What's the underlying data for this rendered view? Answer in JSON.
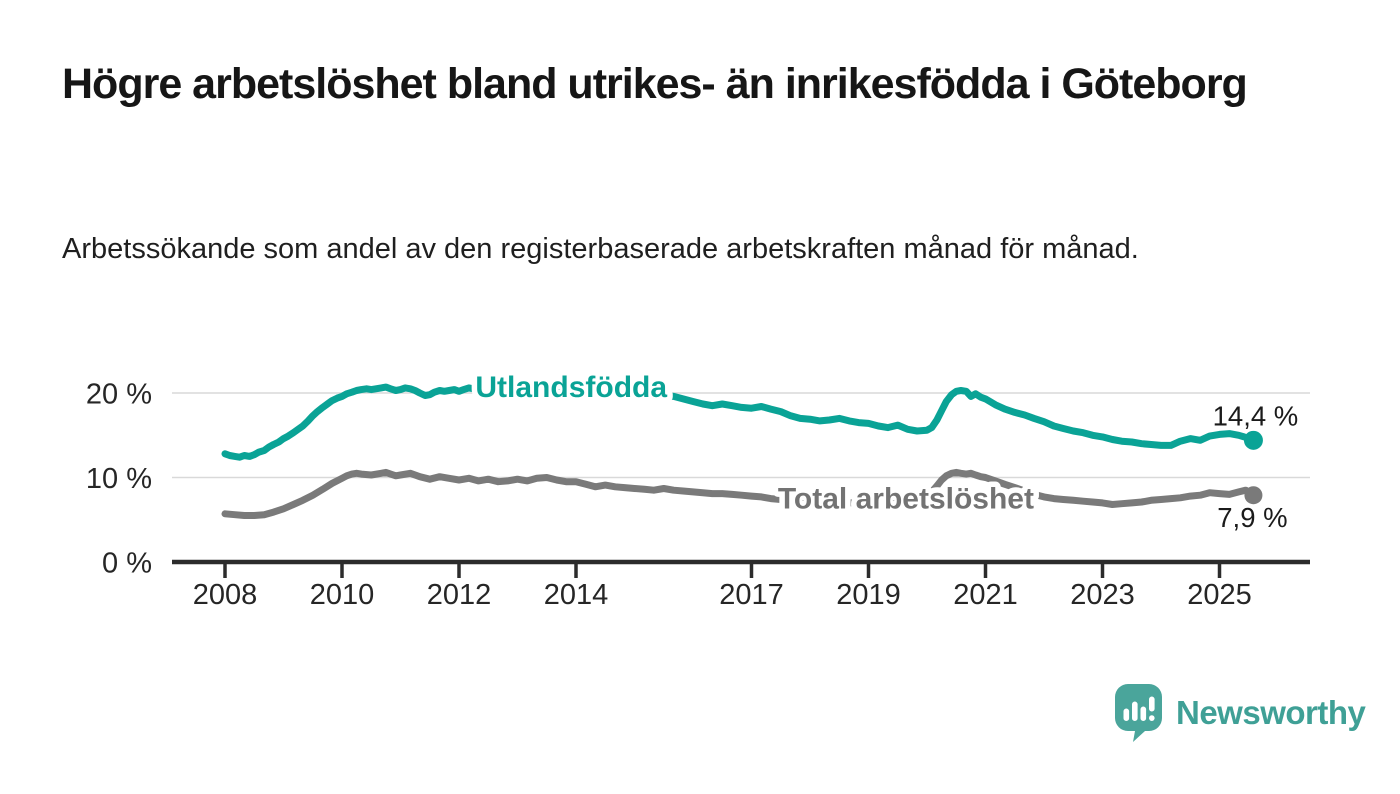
{
  "header": {
    "title": "Högre arbetslöshet bland utrikes- än inrikesfödda i Göteborg",
    "subtitle": "Arbetssökande som andel av den registerbaserade arbetskraften månad för månad."
  },
  "footer": {
    "brand": "Newsworthy",
    "logo_icon": "speech-bubble-bar-chart-icon"
  },
  "colors": {
    "utlandsfodda": "#0AA396",
    "total": "#7A7A7A",
    "total_label": "#737373",
    "grid": "#D9D9D9",
    "axis": "#2C2C2C",
    "axis_text": "#262626",
    "annotation_text": "#1B1B1B",
    "background": "#FFFFFF",
    "logo_bubble": "#4AA59B",
    "logo_text": "#3FA096"
  },
  "chart_data": {
    "type": "line",
    "title": "Högre arbetslöshet bland utrikes- än inrikesfödda i Göteborg",
    "xlabel": "",
    "ylabel": "%",
    "grid": "horizontal-gridlines",
    "legend_position": "inline-series-labels",
    "x_axis": {
      "tick_years": [
        2008,
        2010,
        2012,
        2014,
        2017,
        2019,
        2021,
        2023,
        2025
      ],
      "range": [
        2007.1,
        2026.5
      ]
    },
    "y_axis": {
      "ticks": [
        0,
        10,
        20
      ],
      "tick_suffix": " %",
      "ylim": [
        0,
        23.5
      ]
    },
    "series": [
      {
        "name": "Utlandsfödda",
        "color": "#0AA396",
        "end_label": "14,4 %",
        "end_value": 14.4,
        "label_anchor": [
          2012.28,
          19.55
        ],
        "points": [
          [
            2008.0,
            12.8
          ],
          [
            2008.08,
            12.6
          ],
          [
            2008.17,
            12.5
          ],
          [
            2008.25,
            12.4
          ],
          [
            2008.33,
            12.6
          ],
          [
            2008.42,
            12.5
          ],
          [
            2008.5,
            12.7
          ],
          [
            2008.58,
            13.0
          ],
          [
            2008.67,
            13.2
          ],
          [
            2008.75,
            13.6
          ],
          [
            2008.83,
            13.9
          ],
          [
            2008.92,
            14.2
          ],
          [
            2009.0,
            14.6
          ],
          [
            2009.08,
            14.9
          ],
          [
            2009.17,
            15.3
          ],
          [
            2009.25,
            15.7
          ],
          [
            2009.33,
            16.1
          ],
          [
            2009.42,
            16.7
          ],
          [
            2009.5,
            17.3
          ],
          [
            2009.58,
            17.8
          ],
          [
            2009.67,
            18.3
          ],
          [
            2009.75,
            18.7
          ],
          [
            2009.83,
            19.1
          ],
          [
            2009.92,
            19.4
          ],
          [
            2010.0,
            19.6
          ],
          [
            2010.08,
            19.9
          ],
          [
            2010.17,
            20.1
          ],
          [
            2010.25,
            20.3
          ],
          [
            2010.33,
            20.4
          ],
          [
            2010.42,
            20.5
          ],
          [
            2010.5,
            20.4
          ],
          [
            2010.58,
            20.5
          ],
          [
            2010.67,
            20.6
          ],
          [
            2010.75,
            20.7
          ],
          [
            2010.83,
            20.5
          ],
          [
            2010.92,
            20.3
          ],
          [
            2011.0,
            20.4
          ],
          [
            2011.08,
            20.6
          ],
          [
            2011.17,
            20.5
          ],
          [
            2011.25,
            20.3
          ],
          [
            2011.33,
            20.0
          ],
          [
            2011.42,
            19.7
          ],
          [
            2011.5,
            19.8
          ],
          [
            2011.58,
            20.1
          ],
          [
            2011.67,
            20.3
          ],
          [
            2011.75,
            20.2
          ],
          [
            2011.83,
            20.3
          ],
          [
            2011.92,
            20.4
          ],
          [
            2012.0,
            20.2
          ],
          [
            2012.08,
            20.4
          ],
          [
            2012.17,
            20.6
          ],
          [
            2012.25,
            20.5
          ],
          [
            2012.33,
            20.3
          ],
          [
            2012.42,
            20.4
          ],
          [
            2012.5,
            20.5
          ],
          [
            2012.58,
            20.3
          ],
          [
            2012.67,
            20.4
          ],
          [
            2012.75,
            20.2
          ],
          [
            2012.83,
            20.3
          ],
          [
            2012.92,
            20.4
          ],
          [
            2013.0,
            20.3
          ],
          [
            2013.17,
            20.4
          ],
          [
            2013.33,
            20.2
          ],
          [
            2013.5,
            20.3
          ],
          [
            2013.67,
            20.1
          ],
          [
            2013.83,
            20.2
          ],
          [
            2014.0,
            20.0
          ],
          [
            2014.17,
            20.1
          ],
          [
            2014.33,
            19.9
          ],
          [
            2014.5,
            19.8
          ],
          [
            2014.67,
            19.9
          ],
          [
            2014.83,
            19.7
          ],
          [
            2015.0,
            19.8
          ],
          [
            2015.17,
            19.7
          ],
          [
            2015.33,
            19.6
          ],
          [
            2015.5,
            19.7
          ],
          [
            2015.67,
            19.6
          ],
          [
            2015.83,
            19.3
          ],
          [
            2016.0,
            19.0
          ],
          [
            2016.17,
            18.7
          ],
          [
            2016.33,
            18.5
          ],
          [
            2016.5,
            18.7
          ],
          [
            2016.67,
            18.5
          ],
          [
            2016.83,
            18.3
          ],
          [
            2017.0,
            18.2
          ],
          [
            2017.17,
            18.4
          ],
          [
            2017.33,
            18.1
          ],
          [
            2017.5,
            17.8
          ],
          [
            2017.67,
            17.3
          ],
          [
            2017.83,
            17.0
          ],
          [
            2018.0,
            16.9
          ],
          [
            2018.17,
            16.7
          ],
          [
            2018.33,
            16.8
          ],
          [
            2018.5,
            17.0
          ],
          [
            2018.67,
            16.7
          ],
          [
            2018.83,
            16.5
          ],
          [
            2019.0,
            16.4
          ],
          [
            2019.17,
            16.1
          ],
          [
            2019.33,
            15.9
          ],
          [
            2019.5,
            16.2
          ],
          [
            2019.67,
            15.7
          ],
          [
            2019.83,
            15.5
          ],
          [
            2020.0,
            15.6
          ],
          [
            2020.08,
            15.9
          ],
          [
            2020.17,
            16.8
          ],
          [
            2020.25,
            17.9
          ],
          [
            2020.33,
            19.0
          ],
          [
            2020.42,
            19.8
          ],
          [
            2020.5,
            20.2
          ],
          [
            2020.58,
            20.3
          ],
          [
            2020.67,
            20.2
          ],
          [
            2020.75,
            19.6
          ],
          [
            2020.83,
            19.9
          ],
          [
            2020.92,
            19.5
          ],
          [
            2021.0,
            19.3
          ],
          [
            2021.17,
            18.6
          ],
          [
            2021.33,
            18.1
          ],
          [
            2021.5,
            17.7
          ],
          [
            2021.67,
            17.4
          ],
          [
            2021.83,
            17.0
          ],
          [
            2022.0,
            16.6
          ],
          [
            2022.17,
            16.1
          ],
          [
            2022.33,
            15.8
          ],
          [
            2022.5,
            15.5
          ],
          [
            2022.67,
            15.3
          ],
          [
            2022.83,
            15.0
          ],
          [
            2023.0,
            14.8
          ],
          [
            2023.17,
            14.5
          ],
          [
            2023.33,
            14.3
          ],
          [
            2023.5,
            14.2
          ],
          [
            2023.67,
            14.0
          ],
          [
            2023.83,
            13.9
          ],
          [
            2024.0,
            13.8
          ],
          [
            2024.17,
            13.8
          ],
          [
            2024.33,
            14.3
          ],
          [
            2024.5,
            14.6
          ],
          [
            2024.67,
            14.4
          ],
          [
            2024.83,
            14.9
          ],
          [
            2025.0,
            15.1
          ],
          [
            2025.17,
            15.2
          ],
          [
            2025.33,
            15.0
          ],
          [
            2025.42,
            14.8
          ],
          [
            2025.58,
            14.4
          ]
        ]
      },
      {
        "name": "Total arbetslöshet",
        "color": "#7A7A7A",
        "end_label": "7,9 %",
        "end_value": 7.9,
        "label_anchor": [
          2017.45,
          6.35
        ],
        "points": [
          [
            2008.0,
            5.7
          ],
          [
            2008.17,
            5.6
          ],
          [
            2008.33,
            5.5
          ],
          [
            2008.5,
            5.5
          ],
          [
            2008.67,
            5.6
          ],
          [
            2008.83,
            5.9
          ],
          [
            2009.0,
            6.3
          ],
          [
            2009.17,
            6.8
          ],
          [
            2009.33,
            7.3
          ],
          [
            2009.5,
            7.9
          ],
          [
            2009.67,
            8.6
          ],
          [
            2009.83,
            9.3
          ],
          [
            2010.0,
            9.9
          ],
          [
            2010.08,
            10.2
          ],
          [
            2010.17,
            10.4
          ],
          [
            2010.25,
            10.5
          ],
          [
            2010.33,
            10.4
          ],
          [
            2010.5,
            10.3
          ],
          [
            2010.67,
            10.5
          ],
          [
            2010.75,
            10.6
          ],
          [
            2010.83,
            10.4
          ],
          [
            2010.92,
            10.2
          ],
          [
            2011.0,
            10.3
          ],
          [
            2011.17,
            10.5
          ],
          [
            2011.33,
            10.1
          ],
          [
            2011.5,
            9.8
          ],
          [
            2011.67,
            10.1
          ],
          [
            2011.83,
            9.9
          ],
          [
            2012.0,
            9.7
          ],
          [
            2012.17,
            9.9
          ],
          [
            2012.33,
            9.6
          ],
          [
            2012.5,
            9.8
          ],
          [
            2012.67,
            9.5
          ],
          [
            2012.83,
            9.6
          ],
          [
            2013.0,
            9.8
          ],
          [
            2013.17,
            9.6
          ],
          [
            2013.33,
            9.9
          ],
          [
            2013.5,
            10.0
          ],
          [
            2013.67,
            9.7
          ],
          [
            2013.83,
            9.5
          ],
          [
            2014.0,
            9.5
          ],
          [
            2014.17,
            9.2
          ],
          [
            2014.33,
            8.9
          ],
          [
            2014.5,
            9.1
          ],
          [
            2014.67,
            8.9
          ],
          [
            2014.83,
            8.8
          ],
          [
            2015.0,
            8.7
          ],
          [
            2015.17,
            8.6
          ],
          [
            2015.33,
            8.5
          ],
          [
            2015.5,
            8.7
          ],
          [
            2015.67,
            8.5
          ],
          [
            2015.83,
            8.4
          ],
          [
            2016.0,
            8.3
          ],
          [
            2016.17,
            8.2
          ],
          [
            2016.33,
            8.1
          ],
          [
            2016.5,
            8.1
          ],
          [
            2016.67,
            8.0
          ],
          [
            2016.83,
            7.9
          ],
          [
            2017.0,
            7.8
          ],
          [
            2017.17,
            7.7
          ],
          [
            2017.33,
            7.5
          ],
          [
            2017.5,
            7.4
          ],
          [
            2017.67,
            7.3
          ],
          [
            2017.83,
            7.2
          ],
          [
            2018.0,
            7.2
          ],
          [
            2018.17,
            7.1
          ],
          [
            2018.33,
            7.2
          ],
          [
            2018.5,
            7.1
          ],
          [
            2018.67,
            7.0
          ],
          [
            2018.83,
            7.0
          ],
          [
            2019.0,
            7.0
          ],
          [
            2019.17,
            7.1
          ],
          [
            2019.33,
            7.2
          ],
          [
            2019.5,
            7.3
          ],
          [
            2019.67,
            7.4
          ],
          [
            2019.83,
            7.6
          ],
          [
            2020.0,
            7.9
          ],
          [
            2020.08,
            8.3
          ],
          [
            2020.17,
            9.0
          ],
          [
            2020.25,
            9.7
          ],
          [
            2020.33,
            10.2
          ],
          [
            2020.42,
            10.5
          ],
          [
            2020.5,
            10.6
          ],
          [
            2020.58,
            10.5
          ],
          [
            2020.67,
            10.4
          ],
          [
            2020.75,
            10.5
          ],
          [
            2020.83,
            10.3
          ],
          [
            2020.92,
            10.1
          ],
          [
            2021.0,
            10.0
          ],
          [
            2021.17,
            9.6
          ],
          [
            2021.33,
            9.2
          ],
          [
            2021.5,
            8.8
          ],
          [
            2021.67,
            8.4
          ],
          [
            2021.83,
            8.0
          ],
          [
            2022.0,
            7.7
          ],
          [
            2022.17,
            7.5
          ],
          [
            2022.33,
            7.4
          ],
          [
            2022.5,
            7.3
          ],
          [
            2022.67,
            7.2
          ],
          [
            2022.83,
            7.1
          ],
          [
            2023.0,
            7.0
          ],
          [
            2023.17,
            6.8
          ],
          [
            2023.33,
            6.9
          ],
          [
            2023.5,
            7.0
          ],
          [
            2023.67,
            7.1
          ],
          [
            2023.83,
            7.3
          ],
          [
            2024.0,
            7.4
          ],
          [
            2024.17,
            7.5
          ],
          [
            2024.33,
            7.6
          ],
          [
            2024.5,
            7.8
          ],
          [
            2024.67,
            7.9
          ],
          [
            2024.83,
            8.2
          ],
          [
            2025.0,
            8.1
          ],
          [
            2025.17,
            8.0
          ],
          [
            2025.33,
            8.3
          ],
          [
            2025.45,
            8.5
          ],
          [
            2025.58,
            7.9
          ]
        ]
      }
    ]
  }
}
